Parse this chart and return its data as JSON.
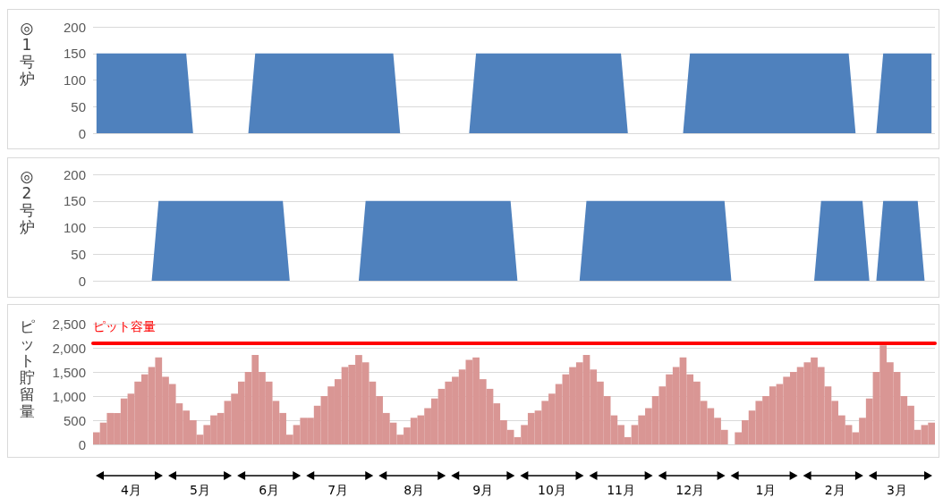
{
  "chart_data": [
    {
      "type": "area",
      "ylabel": "◎1号炉",
      "ylim": [
        0,
        200
      ],
      "yticks": [
        0,
        50,
        100,
        150,
        200
      ],
      "grid": "y",
      "tick_labels": "y",
      "categories": [
        null,
        null,
        null,
        null,
        null,
        null,
        null,
        null,
        null,
        null,
        null,
        null,
        null,
        null,
        null,
        null,
        null,
        null,
        null,
        null,
        null,
        null,
        null,
        null,
        null,
        null,
        null,
        null,
        null,
        null,
        null,
        null,
        null,
        null,
        null,
        null,
        null,
        null,
        null,
        null,
        null,
        null,
        null,
        null,
        null,
        null,
        null,
        null,
        null,
        null,
        null,
        null,
        null,
        null,
        null,
        null,
        null,
        null,
        null,
        null,
        null,
        null,
        null,
        null,
        null,
        null,
        null,
        null,
        null,
        null,
        null,
        null,
        null,
        null,
        null,
        null,
        null,
        null,
        null,
        null,
        null,
        null,
        null,
        null,
        null,
        null,
        null,
        null,
        null,
        null,
        null,
        null,
        null,
        null,
        null,
        null,
        null,
        null,
        null,
        null,
        null,
        null,
        null,
        null,
        null,
        null,
        null,
        null,
        null,
        null,
        null,
        null,
        null,
        null,
        null,
        null,
        null,
        null,
        null,
        null,
        null,
        null
      ],
      "series": [
        {
          "color": "#4f81bd",
          "values": [
            150,
            150,
            150,
            150,
            150,
            150,
            150,
            150,
            150,
            150,
            150,
            150,
            150,
            150,
            0,
            0,
            0,
            0,
            0,
            0,
            0,
            0,
            0,
            150,
            150,
            150,
            150,
            150,
            150,
            150,
            150,
            150,
            150,
            150,
            150,
            150,
            150,
            150,
            150,
            150,
            150,
            150,
            150,
            150,
            0,
            0,
            0,
            0,
            0,
            0,
            0,
            0,
            0,
            0,
            0,
            150,
            150,
            150,
            150,
            150,
            150,
            150,
            150,
            150,
            150,
            150,
            150,
            150,
            150,
            150,
            150,
            150,
            150,
            150,
            150,
            150,
            150,
            0,
            0,
            0,
            0,
            0,
            0,
            0,
            0,
            0,
            150,
            150,
            150,
            150,
            150,
            150,
            150,
            150,
            150,
            150,
            150,
            150,
            150,
            150,
            150,
            150,
            150,
            150,
            150,
            150,
            150,
            150,
            150,
            150,
            0,
            0,
            0,
            0,
            150,
            150,
            150,
            150,
            150,
            150,
            150,
            150
          ]
        }
      ]
    },
    {
      "type": "area",
      "ylabel": "◎2号炉",
      "ylim": [
        0,
        200
      ],
      "yticks": [
        0,
        50,
        100,
        150,
        200
      ],
      "grid": "y",
      "tick_labels": "y",
      "categories": [
        null,
        null,
        null,
        null,
        null,
        null,
        null,
        null,
        null,
        null,
        null,
        null,
        null,
        null,
        null,
        null,
        null,
        null,
        null,
        null,
        null,
        null,
        null,
        null,
        null,
        null,
        null,
        null,
        null,
        null,
        null,
        null,
        null,
        null,
        null,
        null,
        null,
        null,
        null,
        null,
        null,
        null,
        null,
        null,
        null,
        null,
        null,
        null,
        null,
        null,
        null,
        null,
        null,
        null,
        null,
        null,
        null,
        null,
        null,
        null,
        null,
        null,
        null,
        null,
        null,
        null,
        null,
        null,
        null,
        null,
        null,
        null,
        null,
        null,
        null,
        null,
        null,
        null,
        null,
        null,
        null,
        null,
        null,
        null,
        null,
        null,
        null,
        null,
        null,
        null,
        null,
        null,
        null,
        null,
        null,
        null,
        null,
        null,
        null,
        null,
        null,
        null,
        null,
        null,
        null,
        null,
        null,
        null,
        null,
        null,
        null,
        null,
        null,
        null,
        null,
        null,
        null,
        null,
        null,
        null,
        null,
        null
      ],
      "series": [
        {
          "color": "#4f81bd",
          "values": [
            0,
            0,
            0,
            0,
            0,
            0,
            0,
            0,
            0,
            150,
            150,
            150,
            150,
            150,
            150,
            150,
            150,
            150,
            150,
            150,
            150,
            150,
            150,
            150,
            150,
            150,
            150,
            150,
            0,
            0,
            0,
            0,
            0,
            0,
            0,
            0,
            0,
            0,
            0,
            150,
            150,
            150,
            150,
            150,
            150,
            150,
            150,
            150,
            150,
            150,
            150,
            150,
            150,
            150,
            150,
            150,
            150,
            150,
            150,
            150,
            150,
            0,
            0,
            0,
            0,
            0,
            0,
            0,
            0,
            0,
            0,
            150,
            150,
            150,
            150,
            150,
            150,
            150,
            150,
            150,
            150,
            150,
            150,
            150,
            150,
            150,
            150,
            150,
            150,
            150,
            150,
            150,
            0,
            0,
            0,
            0,
            0,
            0,
            0,
            0,
            0,
            0,
            0,
            0,
            0,
            150,
            150,
            150,
            150,
            150,
            150,
            150,
            0,
            0,
            150,
            150,
            150,
            150,
            150,
            150,
            0,
            0
          ]
        }
      ]
    },
    {
      "type": "bar",
      "ylabel": "ピット貯留量",
      "ylim": [
        0,
        2500
      ],
      "grid": "y",
      "yticks": [
        0,
        500,
        {
          "value": 1000,
          "label": "1,000"
        },
        {
          "value": 1500,
          "label": "1,500"
        },
        {
          "value": 2000,
          "label": "2,000"
        },
        {
          "value": 2500,
          "label": "2,500"
        }
      ],
      "categories": [
        null,
        null,
        null,
        null,
        null,
        "4月",
        null,
        null,
        null,
        null,
        null,
        null,
        null,
        null,
        null,
        "5月",
        null,
        null,
        null,
        null,
        null,
        null,
        null,
        null,
        null,
        "6月",
        null,
        null,
        null,
        null,
        null,
        null,
        null,
        null,
        null,
        "7月",
        null,
        null,
        null,
        null,
        null,
        null,
        null,
        null,
        null,
        null,
        "8月",
        null,
        null,
        null,
        null,
        null,
        null,
        null,
        null,
        null,
        "9月",
        null,
        null,
        null,
        null,
        null,
        null,
        null,
        null,
        null,
        "10月",
        null,
        null,
        null,
        null,
        null,
        null,
        null,
        null,
        null,
        "11月",
        null,
        null,
        null,
        null,
        null,
        null,
        null,
        null,
        null,
        "12月",
        null,
        null,
        null,
        null,
        null,
        null,
        null,
        null,
        null,
        null,
        "1月",
        null,
        null,
        null,
        null,
        null,
        null,
        null,
        null,
        null,
        "2月",
        null,
        null,
        null,
        null,
        null,
        null,
        null,
        null,
        "3月",
        null,
        null,
        null,
        null,
        null
      ],
      "ref_lines": [
        {
          "axis": "y",
          "value": 2100,
          "label": "ピット容量",
          "color": "#ff0000"
        }
      ],
      "series": [
        {
          "color": "#d99694",
          "values": [
            250,
            450,
            650,
            650,
            950,
            1050,
            1300,
            1450,
            1600,
            1800,
            1400,
            1250,
            850,
            700,
            500,
            200,
            400,
            600,
            650,
            900,
            1050,
            1300,
            1500,
            1850,
            1500,
            1300,
            900,
            650,
            200,
            400,
            550,
            550,
            800,
            1000,
            1200,
            1350,
            1600,
            1650,
            1850,
            1700,
            1300,
            1000,
            650,
            450,
            200,
            350,
            550,
            600,
            750,
            950,
            1150,
            1300,
            1400,
            1550,
            1750,
            1800,
            1350,
            1150,
            850,
            500,
            300,
            150,
            400,
            650,
            700,
            900,
            1050,
            1250,
            1450,
            1600,
            1700,
            1850,
            1550,
            1300,
            1000,
            600,
            400,
            150,
            400,
            600,
            750,
            1000,
            1200,
            1450,
            1600,
            1800,
            1450,
            1300,
            900,
            750,
            550,
            300,
            0,
            250,
            500,
            700,
            900,
            1000,
            1200,
            1250,
            1400,
            1500,
            1600,
            1700,
            1800,
            1600,
            1200,
            900,
            600,
            400,
            250,
            550,
            950,
            1500,
            2050,
            1700,
            1500,
            1000,
            800,
            300,
            400,
            450
          ]
        }
      ]
    }
  ]
}
